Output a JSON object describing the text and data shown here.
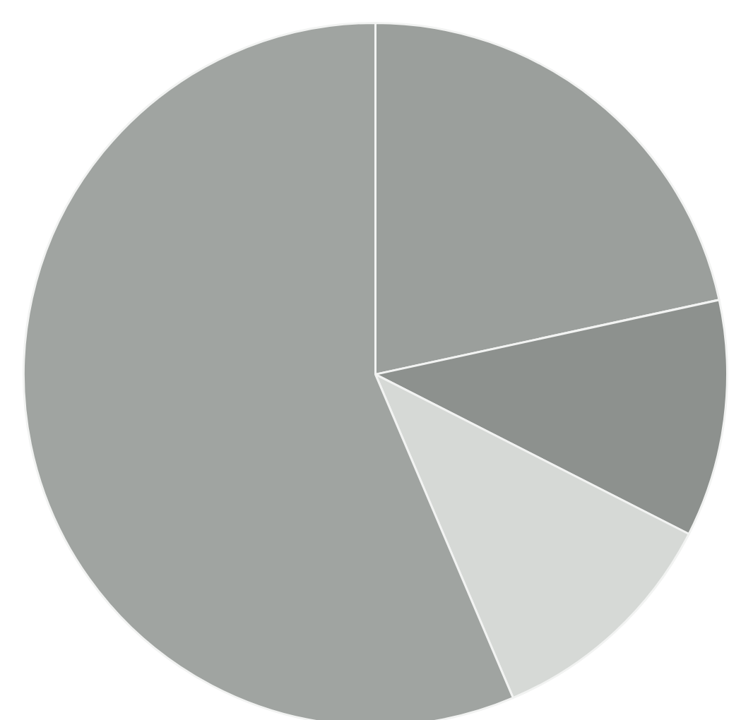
{
  "chart_data": {
    "type": "pie",
    "categories": [
      null,
      null,
      null,
      null
    ],
    "values": [
      21.6,
      10.9,
      11.1,
      56.4
    ],
    "colors": [
      "#9b9f9c",
      "#8d918e",
      "#d6d9d6",
      "#a0a4a1"
    ]
  }
}
